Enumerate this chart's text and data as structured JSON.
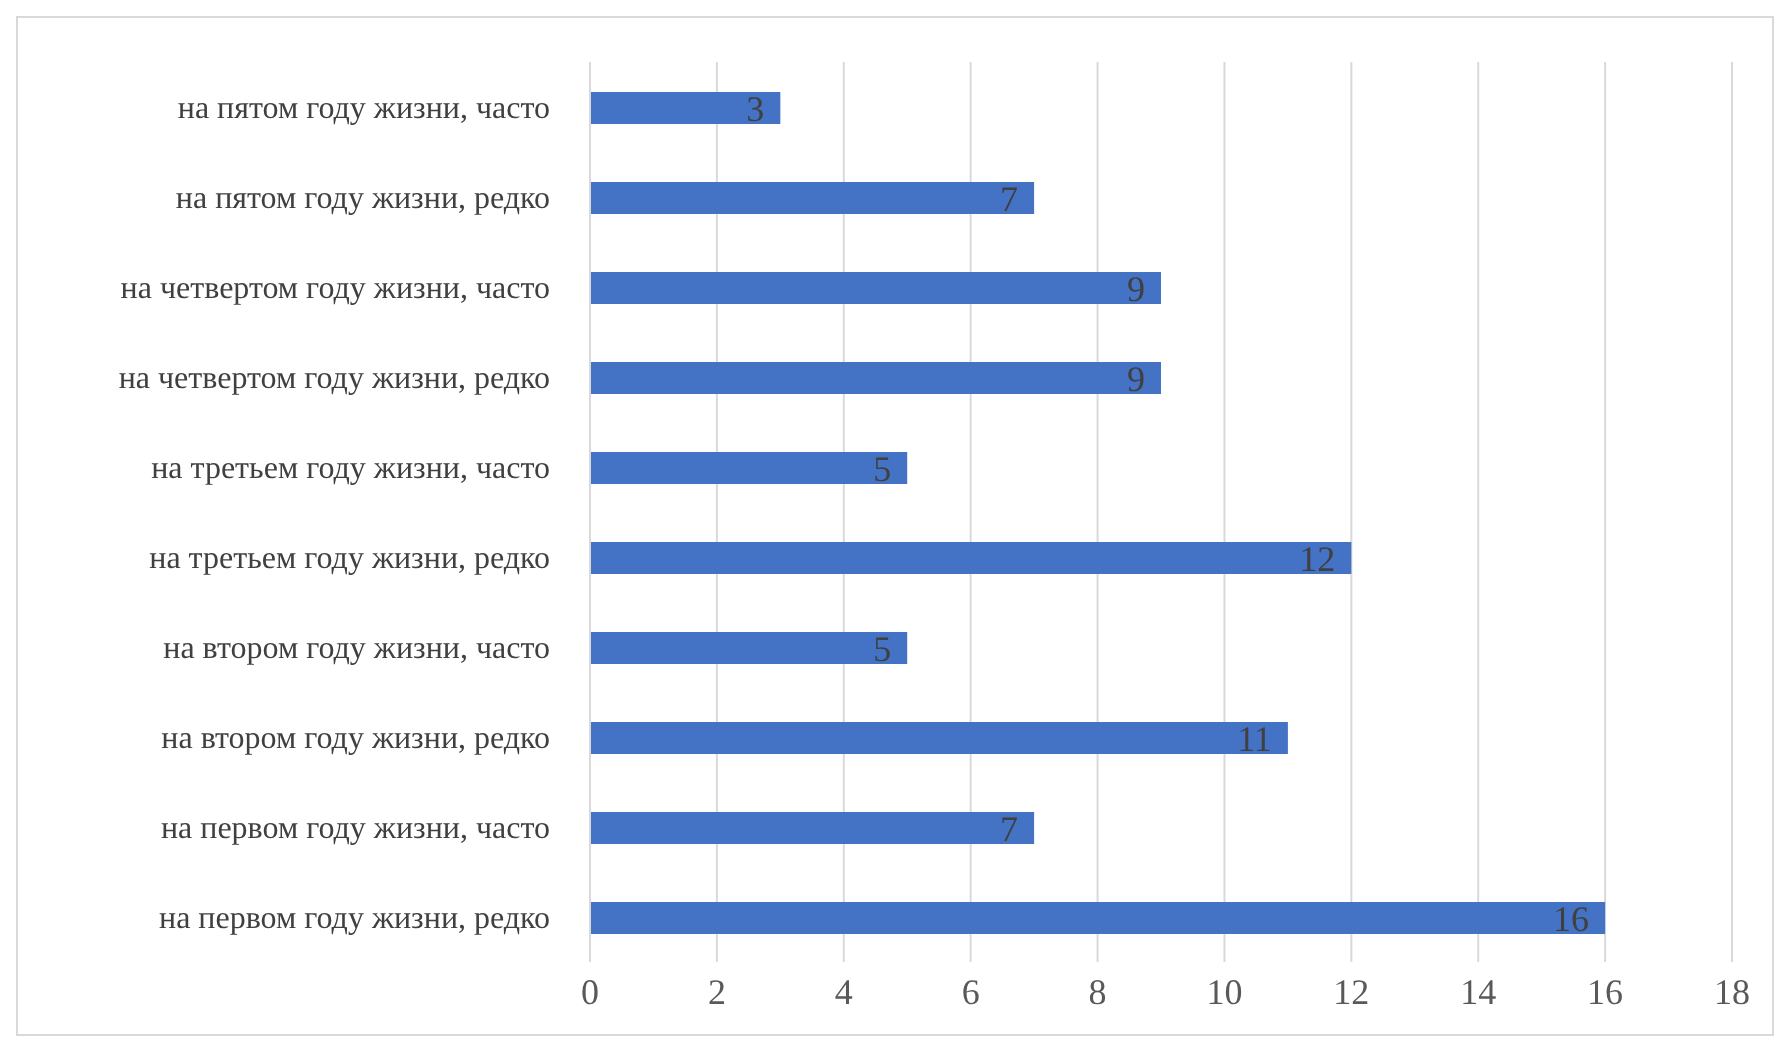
{
  "chart_data": {
    "type": "bar",
    "orientation": "horizontal",
    "categories": [
      "на пятом году жизни, часто",
      "на пятом году жизни, редко",
      "на четвертом году жизни, часто",
      "на четвертом году жизни, редко",
      "на третьем году жизни, часто",
      "на третьем году жизни, редко",
      "на втором году жизни, часто",
      "на втором году жизни, редко",
      "на первом году жизни, часто",
      "на первом году жизни, редко"
    ],
    "values": [
      3,
      7,
      9,
      9,
      5,
      12,
      5,
      11,
      7,
      16
    ],
    "color": "#4472c4",
    "xlim": [
      0,
      18
    ],
    "xticks": [
      0,
      2,
      4,
      6,
      8,
      10,
      12,
      14,
      16,
      18
    ],
    "grid": "x",
    "data_labels": true
  }
}
